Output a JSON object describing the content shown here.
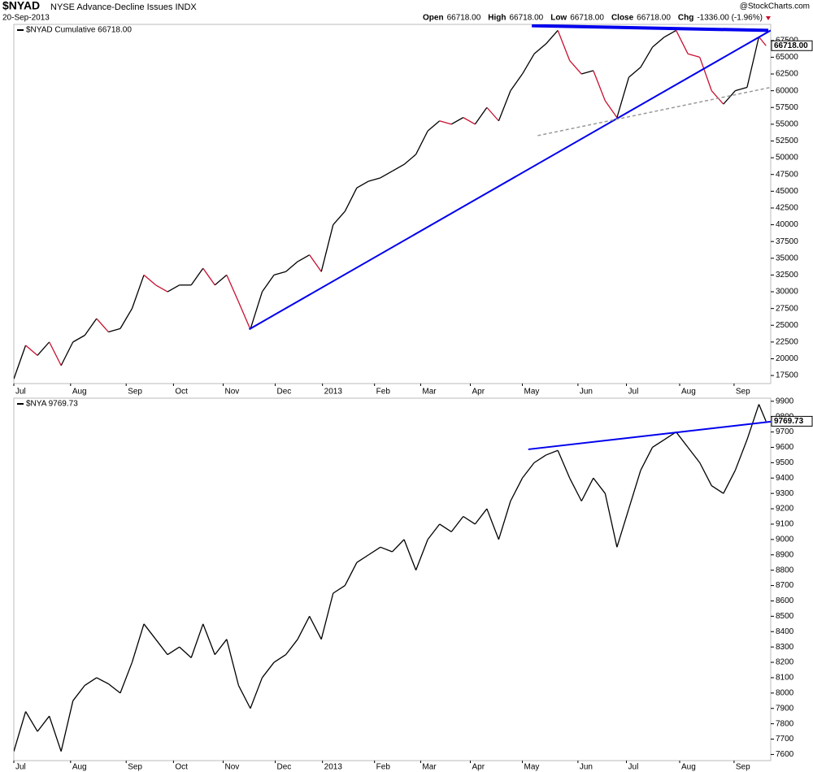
{
  "header": {
    "symbol": "$NYAD",
    "name": "NYSE Advance-Decline Issues INDX",
    "date": "20-Sep-2013",
    "brand": "@StockCharts.com",
    "quote": [
      {
        "label": "Open",
        "value": "66718.00"
      },
      {
        "label": "High",
        "value": "66718.00"
      },
      {
        "label": "Low",
        "value": "66718.00"
      },
      {
        "label": "Close",
        "value": "66718.00"
      },
      {
        "label": "Chg",
        "value": "-1336.00 (-1.96%)"
      }
    ],
    "down_color": "#c8102e"
  },
  "chart_data": [
    {
      "type": "line",
      "legend": "$NYAD  Cumulative 66718.00",
      "last_label": "66718.00",
      "up_color": "#000000",
      "down_color": "#c8102e",
      "x": [
        0,
        1,
        2,
        3,
        4,
        5,
        6,
        7,
        8,
        9,
        10,
        11,
        12,
        13,
        14,
        15,
        16,
        17,
        18,
        19,
        20,
        21,
        22,
        23,
        24,
        25,
        26,
        27,
        28,
        29,
        30,
        31,
        32,
        33,
        34,
        35,
        36,
        37,
        38,
        39,
        40,
        41,
        42,
        43,
        44,
        45,
        46,
        47,
        48,
        49,
        50,
        51,
        52,
        53,
        54,
        55,
        56,
        57,
        58,
        59,
        60,
        61,
        62,
        63,
        63.6
      ],
      "values": [
        17000,
        22000,
        20500,
        22500,
        19000,
        22500,
        23500,
        26000,
        24000,
        24500,
        27500,
        32500,
        31000,
        30000,
        31000,
        31000,
        33500,
        31000,
        32500,
        28500,
        24400,
        30000,
        32500,
        33000,
        34500,
        35500,
        33000,
        40000,
        42000,
        45500,
        46500,
        47000,
        48000,
        49000,
        50500,
        54000,
        55500,
        55000,
        56000,
        55000,
        57500,
        55500,
        60000,
        62500,
        65500,
        67000,
        69000,
        64500,
        62500,
        63000,
        58500,
        56000,
        62000,
        63500,
        66500,
        68000,
        69000,
        65500,
        65000,
        60000,
        58000,
        60000,
        60500,
        68054,
        66718
      ],
      "trendlines": [
        {
          "color": "#0000ee",
          "width": 4,
          "dash": false,
          "x": [
            43.8,
            63.8
          ],
          "y": [
            69700,
            69000
          ]
        },
        {
          "color": "#0000ee",
          "width": 2,
          "dash": false,
          "x": [
            19.9,
            64
          ],
          "y": [
            24400,
            69000
          ]
        },
        {
          "color": "#999999",
          "width": 1.5,
          "dash": true,
          "x": [
            44.3,
            64
          ],
          "y": [
            53300,
            60500
          ]
        }
      ],
      "xlim": [
        0,
        64
      ],
      "ylim": [
        16300,
        69900
      ],
      "xticks": [
        {
          "value": 0,
          "label": "Jul"
        },
        {
          "value": 4.8,
          "label": "Aug"
        },
        {
          "value": 9.5,
          "label": "Sep"
        },
        {
          "value": 13.5,
          "label": "Oct"
        },
        {
          "value": 17.7,
          "label": "Nov"
        },
        {
          "value": 22.1,
          "label": "Dec"
        },
        {
          "value": 26.1,
          "label": "2013"
        },
        {
          "value": 30.5,
          "label": "Feb"
        },
        {
          "value": 34.4,
          "label": "Mar"
        },
        {
          "value": 38.6,
          "label": "Apr"
        },
        {
          "value": 43.0,
          "label": "May"
        },
        {
          "value": 47.7,
          "label": "Jun"
        },
        {
          "value": 51.8,
          "label": "Jul"
        },
        {
          "value": 56.3,
          "label": "Aug"
        },
        {
          "value": 60.9,
          "label": "Sep"
        }
      ],
      "yticks": [
        17500,
        20000,
        22500,
        25000,
        27500,
        30000,
        32500,
        35000,
        37500,
        40000,
        42500,
        45000,
        47500,
        50000,
        52500,
        55000,
        57500,
        60000,
        62500,
        65000,
        67500
      ]
    },
    {
      "type": "line",
      "legend": "$NYA  9769.73",
      "last_label": "9769.73",
      "color": "#000000",
      "x": [
        0,
        1,
        2,
        3,
        4,
        5,
        6,
        7,
        8,
        9,
        10,
        11,
        12,
        13,
        14,
        15,
        16,
        17,
        18,
        19,
        20,
        21,
        22,
        23,
        24,
        25,
        26,
        27,
        28,
        29,
        30,
        31,
        32,
        33,
        34,
        35,
        36,
        37,
        38,
        39,
        40,
        41,
        42,
        43,
        44,
        45,
        46,
        47,
        48,
        49,
        50,
        51,
        52,
        53,
        54,
        55,
        56,
        57,
        58,
        59,
        60,
        61,
        62,
        63,
        63.6
      ],
      "values": [
        7620,
        7880,
        7750,
        7850,
        7620,
        7950,
        8050,
        8100,
        8060,
        8000,
        8200,
        8450,
        8350,
        8250,
        8300,
        8230,
        8450,
        8250,
        8350,
        8050,
        7900,
        8100,
        8200,
        8250,
        8350,
        8500,
        8350,
        8650,
        8700,
        8850,
        8900,
        8950,
        8920,
        9000,
        8800,
        9000,
        9100,
        9050,
        9150,
        9100,
        9200,
        9000,
        9250,
        9400,
        9500,
        9550,
        9580,
        9400,
        9250,
        9400,
        9300,
        8950,
        9200,
        9450,
        9600,
        9650,
        9700,
        9600,
        9500,
        9350,
        9300,
        9450,
        9650,
        9880,
        9769.73
      ],
      "trendlines": [
        {
          "color": "#0000ee",
          "width": 2,
          "dash": false,
          "x": [
            43.5,
            64
          ],
          "y": [
            9587,
            9767
          ]
        }
      ],
      "xlim": [
        0,
        64
      ],
      "ylim": [
        7560,
        9920
      ],
      "xticks": [
        {
          "value": 0,
          "label": "Jul"
        },
        {
          "value": 4.8,
          "label": "Aug"
        },
        {
          "value": 9.5,
          "label": "Sep"
        },
        {
          "value": 13.5,
          "label": "Oct"
        },
        {
          "value": 17.7,
          "label": "Nov"
        },
        {
          "value": 22.1,
          "label": "Dec"
        },
        {
          "value": 26.1,
          "label": "2013"
        },
        {
          "value": 30.5,
          "label": "Feb"
        },
        {
          "value": 34.4,
          "label": "Mar"
        },
        {
          "value": 38.6,
          "label": "Apr"
        },
        {
          "value": 43.0,
          "label": "May"
        },
        {
          "value": 47.7,
          "label": "Jun"
        },
        {
          "value": 51.8,
          "label": "Jul"
        },
        {
          "value": 56.3,
          "label": "Aug"
        },
        {
          "value": 60.9,
          "label": "Sep"
        }
      ],
      "yticks": [
        7600,
        7700,
        7800,
        7900,
        8000,
        8100,
        8200,
        8300,
        8400,
        8500,
        8600,
        8700,
        8800,
        8900,
        9000,
        9100,
        9200,
        9300,
        9400,
        9500,
        9600,
        9700,
        9800,
        9900
      ]
    }
  ]
}
